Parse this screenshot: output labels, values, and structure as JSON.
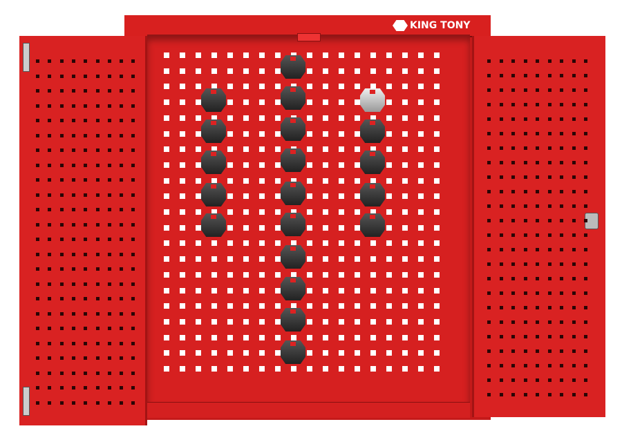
{
  "brand": {
    "logo_text": "KING TONY",
    "logo-icon": "hexagon-wrench-icon"
  },
  "colors": {
    "cabinet_red": "#d62020",
    "hook_dark": "#333333",
    "hook_silver": "#cccccc"
  },
  "cabinet": {
    "doors": "open",
    "hook_count": 20
  }
}
